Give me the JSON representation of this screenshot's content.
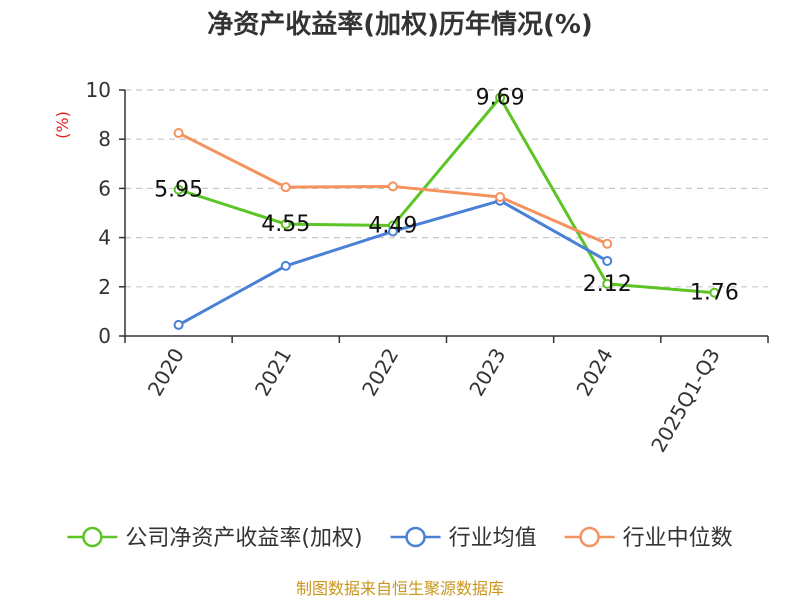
{
  "chart_data": {
    "type": "line",
    "title": "净资产收益率(加权)历年情况(%)",
    "ylabel": "(%)",
    "categories": [
      "2020",
      "2021",
      "2022",
      "2023",
      "2024",
      "2025Q1-Q3"
    ],
    "ylim": [
      0,
      10
    ],
    "yticks": [
      0,
      2,
      4,
      6,
      8,
      10
    ],
    "grid": true,
    "legend_position": "bottom",
    "series": [
      {
        "name": "公司净资产收益率(加权)",
        "color": "#5cc425",
        "values": [
          5.95,
          4.55,
          4.49,
          9.69,
          2.12,
          1.76
        ],
        "labels": [
          "5.95",
          "4.55",
          "4.49",
          "9.69",
          "2.12",
          "1.76"
        ]
      },
      {
        "name": "行业均值",
        "color": "#4a80d6",
        "values": [
          0.45,
          2.85,
          4.25,
          5.5,
          3.05,
          null
        ]
      },
      {
        "name": "行业中位数",
        "color": "#f5925e",
        "values": [
          8.25,
          6.05,
          6.08,
          5.65,
          3.75,
          null
        ]
      }
    ],
    "source": "制图数据来自恒生聚源数据库"
  }
}
